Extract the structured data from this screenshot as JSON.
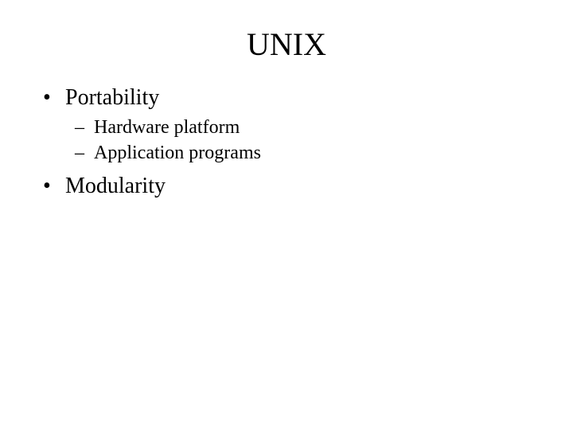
{
  "background_color": "#ffffff",
  "text_color": "#000000",
  "font_family": "Times New Roman",
  "title": {
    "text": "UNIX",
    "fontsize": 40,
    "align": "center"
  },
  "bullets": {
    "level1_fontsize": 28,
    "level2_fontsize": 24,
    "level1_marker": "•",
    "level2_marker": "–",
    "items": [
      {
        "text": "Portability",
        "sub": [
          {
            "text": "Hardware platform"
          },
          {
            "text": "Application programs"
          }
        ]
      },
      {
        "text": "Modularity",
        "sub": []
      }
    ]
  }
}
